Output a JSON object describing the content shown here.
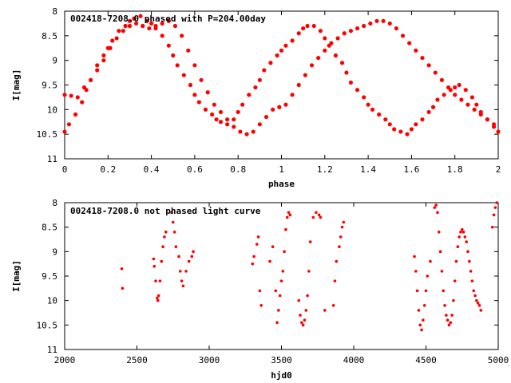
{
  "chart_data": [
    {
      "type": "scatter",
      "title": "002418-7208.0 phased with P=204.00day",
      "xlabel": "phase",
      "ylabel": "I[mag]",
      "xlim": [
        0,
        2
      ],
      "ylim": [
        11,
        8
      ],
      "y_inverted": true,
      "xticks": [
        "0",
        "0.2",
        "0.4",
        "0.6",
        "0.8",
        "1",
        "1.2",
        "1.4",
        "1.6",
        "1.8",
        "2"
      ],
      "yticks": [
        "8",
        "8.5",
        "9",
        "9.5",
        "10",
        "10.5",
        "11"
      ],
      "marker_color": "#ff0000",
      "grid": false,
      "series": [
        {
          "x": [
            0.0,
            0.02,
            0.05,
            0.08,
            0.1,
            0.12,
            0.15,
            0.18,
            0.2,
            0.22,
            0.25,
            0.28,
            0.3,
            0.32,
            0.35,
            0.38,
            0.4,
            0.42,
            0.45,
            0.48,
            0.5,
            0.52,
            0.55,
            0.58,
            0.6,
            0.62,
            0.65,
            0.68,
            0.7,
            0.72,
            0.75,
            0.78,
            0.8,
            0.82,
            0.85,
            0.88,
            0.9,
            0.92,
            0.95,
            0.98,
            1.0,
            1.02,
            1.05,
            1.08,
            1.1,
            1.12,
            1.15,
            1.18,
            1.2,
            1.22,
            1.25,
            1.28,
            1.3,
            1.32,
            1.35,
            1.38,
            1.4,
            1.42,
            1.45,
            1.48,
            1.5,
            1.52,
            1.55,
            1.58,
            1.6,
            1.62,
            1.65,
            1.68,
            1.7,
            1.72,
            1.75,
            1.78,
            1.8,
            1.82,
            1.85,
            1.88,
            1.9,
            1.92,
            1.95,
            1.98,
            2.0
          ],
          "y": [
            10.45,
            10.3,
            10.1,
            9.85,
            9.6,
            9.4,
            9.1,
            8.9,
            8.75,
            8.6,
            8.4,
            8.3,
            8.2,
            8.15,
            8.1,
            8.2,
            8.25,
            8.35,
            8.5,
            8.7,
            8.9,
            9.1,
            9.3,
            9.5,
            9.7,
            9.85,
            10.0,
            10.1,
            10.2,
            10.25,
            10.3,
            10.2,
            10.05,
            9.9,
            9.7,
            9.55,
            9.4,
            9.2,
            9.05,
            8.9,
            8.8,
            8.7,
            8.6,
            8.45,
            8.35,
            8.3,
            8.3,
            8.4,
            8.55,
            8.7,
            8.9,
            9.05,
            9.25,
            9.45,
            9.6,
            9.75,
            9.9,
            10.0,
            10.1,
            10.2,
            10.3,
            10.4,
            10.45,
            10.5,
            10.4,
            10.3,
            10.2,
            10.05,
            9.95,
            9.8,
            9.7,
            9.6,
            9.55,
            9.5,
            9.6,
            9.75,
            9.9,
            10.05,
            10.2,
            10.35,
            10.45
          ]
        },
        {
          "x": [
            0.0,
            0.03,
            0.06,
            0.09,
            0.12,
            0.15,
            0.18,
            0.21,
            0.24,
            0.27,
            0.3,
            0.33,
            0.36,
            0.39,
            0.42,
            0.45,
            0.48,
            0.51,
            0.54,
            0.57,
            0.6,
            0.63,
            0.66,
            0.69,
            0.72,
            0.75,
            0.78,
            0.81,
            0.84,
            0.87,
            0.9,
            0.93,
            0.96,
            0.99,
            1.02,
            1.05,
            1.08,
            1.11,
            1.14,
            1.17,
            1.2,
            1.23,
            1.26,
            1.29,
            1.32,
            1.35,
            1.38,
            1.41,
            1.44,
            1.47,
            1.5,
            1.53,
            1.56,
            1.59,
            1.62,
            1.65,
            1.68,
            1.71,
            1.74,
            1.77,
            1.8,
            1.83,
            1.86,
            1.89,
            1.92,
            1.95,
            1.98
          ],
          "y": [
            9.7,
            9.72,
            9.75,
            9.55,
            9.4,
            9.2,
            9.0,
            8.75,
            8.55,
            8.4,
            8.3,
            8.25,
            8.3,
            8.35,
            8.3,
            8.25,
            8.2,
            8.3,
            8.5,
            8.8,
            9.1,
            9.4,
            9.65,
            9.9,
            10.05,
            10.2,
            10.35,
            10.45,
            10.5,
            10.45,
            10.3,
            10.15,
            10.0,
            9.95,
            9.9,
            9.7,
            9.5,
            9.3,
            9.1,
            8.95,
            8.8,
            8.65,
            8.55,
            8.45,
            8.4,
            8.35,
            8.3,
            8.25,
            8.2,
            8.2,
            8.25,
            8.35,
            8.5,
            8.65,
            8.8,
            8.95,
            9.1,
            9.25,
            9.4,
            9.55,
            9.7,
            9.8,
            9.9,
            10.0,
            10.1,
            10.2,
            10.3
          ]
        }
      ]
    },
    {
      "type": "scatter",
      "title": "002418-7208.0 not phased light curve",
      "xlabel": "hjd0",
      "ylabel": "I[mag]",
      "xlim": [
        2000,
        5000
      ],
      "ylim": [
        11,
        8
      ],
      "y_inverted": true,
      "xticks": [
        "2000",
        "2500",
        "3000",
        "3500",
        "4000",
        "4500",
        "5000"
      ],
      "yticks": [
        "8",
        "8.5",
        "9",
        "9.5",
        "10",
        "10.5",
        "11"
      ],
      "marker_color": "#ff0000",
      "grid": false,
      "series": [
        {
          "x": [
            2395,
            2400,
            2615,
            2620,
            2630,
            2640,
            2645,
            2650,
            2660,
            2670,
            2680,
            2690,
            2700,
            2740,
            2750,
            2760,
            2770,
            2790,
            2800,
            2810,
            2820,
            2840,
            2860,
            2880,
            2890,
            3300,
            3310,
            3330,
            3340,
            3350,
            3360,
            3420,
            3440,
            3460,
            3470,
            3480,
            3490,
            3500,
            3510,
            3520,
            3530,
            3540,
            3550,
            3560,
            3620,
            3630,
            3640,
            3650,
            3660,
            3670,
            3680,
            3690,
            3700,
            3720,
            3740,
            3760,
            3770,
            3800,
            3860,
            3870,
            3880,
            3900,
            3910,
            3920,
            3930,
            4420,
            4430,
            4440,
            4450,
            4460,
            4470,
            4480,
            4490,
            4500,
            4510,
            4530,
            4560,
            4570,
            4580,
            4590,
            4600,
            4610,
            4620,
            4630,
            4640,
            4650,
            4660,
            4670,
            4680,
            4690,
            4700,
            4710,
            4720,
            4730,
            4740,
            4750,
            4760,
            4770,
            4780,
            4790,
            4800,
            4810,
            4820,
            4830,
            4840,
            4850,
            4860,
            4870,
            4880,
            4960,
            4970,
            4980,
            4990
          ],
          "y": [
            9.35,
            9.75,
            9.15,
            9.3,
            9.6,
            9.95,
            10.0,
            9.9,
            9.6,
            9.2,
            8.9,
            8.7,
            8.6,
            8.2,
            8.4,
            8.6,
            8.9,
            9.1,
            9.4,
            9.6,
            9.7,
            9.4,
            9.2,
            9.1,
            9.0,
            9.25,
            9.1,
            8.85,
            8.7,
            9.8,
            10.1,
            9.2,
            8.9,
            9.8,
            10.45,
            10.2,
            9.9,
            9.6,
            9.4,
            9.0,
            8.55,
            8.3,
            8.2,
            8.25,
            10.0,
            10.3,
            10.45,
            10.5,
            10.4,
            10.2,
            9.9,
            9.4,
            8.8,
            8.3,
            8.2,
            8.25,
            8.3,
            10.2,
            10.1,
            9.6,
            9.2,
            8.9,
            8.7,
            8.5,
            8.4,
            9.1,
            9.4,
            9.8,
            10.2,
            10.5,
            10.6,
            10.4,
            10.1,
            9.8,
            9.5,
            9.2,
            8.1,
            8.05,
            8.2,
            8.6,
            9.0,
            9.4,
            9.8,
            10.1,
            10.3,
            10.4,
            10.5,
            10.45,
            10.3,
            10.0,
            9.6,
            9.2,
            8.9,
            8.7,
            8.6,
            8.55,
            8.6,
            8.7,
            8.8,
            9.0,
            9.2,
            9.4,
            9.6,
            9.8,
            9.9,
            10.0,
            10.05,
            10.1,
            10.2,
            8.5,
            8.25,
            8.1,
            8.0
          ]
        }
      ]
    }
  ]
}
